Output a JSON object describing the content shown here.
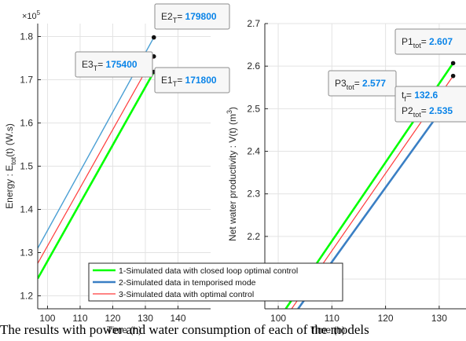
{
  "figure": {
    "caption": "The results with power and water consumption of each of the models"
  },
  "chart_data": [
    {
      "type": "line",
      "xlabel": "Time (h)",
      "ylabel": "Energy : E",
      "ylabel_sub": "tot",
      "ylabel_tail": "(t) (W.s)",
      "exponent_label": "×10",
      "exponent_power": "5",
      "xlim": [
        97,
        150
      ],
      "ylim": [
        117000,
        183000
      ],
      "xticks": [
        "100",
        "110",
        "120",
        "130",
        "140"
      ],
      "xtick_values": [
        100,
        110,
        120,
        130,
        140
      ],
      "yticks": [
        "1.2",
        "1.3",
        "1.4",
        "1.5",
        "1.6",
        "1.7",
        "1.8"
      ],
      "ytick_values": [
        120000,
        130000,
        140000,
        150000,
        160000,
        170000,
        180000
      ],
      "grid": true,
      "series": [
        {
          "key": "s1",
          "color": "#00ff00",
          "width": 2.6,
          "x": [
            97,
            132.6
          ],
          "y": [
            124000,
            171800
          ]
        },
        {
          "key": "s2",
          "color": "#4a9fd4",
          "width": 1.4,
          "x": [
            97,
            132.6
          ],
          "y": [
            131000,
            179800
          ]
        },
        {
          "key": "s3",
          "color": "#ff3b3b",
          "width": 1.2,
          "x": [
            97,
            132.6
          ],
          "y": [
            127500,
            175400
          ]
        }
      ],
      "annotations": [
        {
          "id": "e2",
          "base": "E2",
          "sub": "T",
          "eq": "= ",
          "value": "179800",
          "x": 132.6,
          "y": 179800
        },
        {
          "id": "e3",
          "base": "E3",
          "sub": "T",
          "eq": "= ",
          "value": "175400",
          "x": 132.6,
          "y": 175400
        },
        {
          "id": "e1",
          "base": "E1",
          "sub": "T",
          "eq": "= ",
          "value": "171800",
          "x": 132.6,
          "y": 171800
        }
      ]
    },
    {
      "type": "line",
      "xlabel": "Time (h)",
      "ylabel": "Net water productivity : V(t) (m",
      "ylabel_sup": "3",
      "ylabel_tail": ")",
      "xlim": [
        97.5,
        135
      ],
      "ylim": [
        2.03,
        2.7
      ],
      "xticks": [
        "100",
        "110",
        "120",
        "130"
      ],
      "xtick_values": [
        100,
        110,
        120,
        130
      ],
      "yticks": [
        "2.1",
        "2.2",
        "2.3",
        "2.4",
        "2.5",
        "2.6",
        "2.7"
      ],
      "ytick_values": [
        2.1,
        2.2,
        2.3,
        2.4,
        2.5,
        2.6,
        2.7
      ],
      "grid": true,
      "series": [
        {
          "key": "s1",
          "color": "#00ff00",
          "width": 2.6,
          "x": [
            101.4,
            132.6
          ],
          "y": [
            2.03,
            2.607
          ]
        },
        {
          "key": "s2",
          "color": "#3a7fc4",
          "width": 2.6,
          "x": [
            103.7,
            132.6
          ],
          "y": [
            2.03,
            2.535
          ]
        },
        {
          "key": "s3",
          "color": "#ff3b3b",
          "width": 1.2,
          "x": [
            102.5,
            132.6
          ],
          "y": [
            2.03,
            2.577
          ]
        }
      ],
      "annotations": [
        {
          "id": "p1",
          "base": "P1",
          "sub": "tot",
          "eq": "= ",
          "value": "2.607",
          "x": 132.6,
          "y": 2.607
        },
        {
          "id": "p3",
          "base": "P3",
          "sub": "tot",
          "eq": "= ",
          "value": "2.577",
          "x": 132.6,
          "y": 2.577
        },
        {
          "id": "tf",
          "base": "t",
          "sub": "f",
          "eq": "= ",
          "value": "132.6",
          "x": 132.6,
          "y": 2.535
        },
        {
          "id": "p2",
          "base": "P2",
          "sub": "tot",
          "eq": "= ",
          "value": "2.535",
          "x": 132.6,
          "y": 2.535
        }
      ]
    }
  ],
  "legend": {
    "entries": [
      {
        "key": "s1",
        "color": "#00ff00",
        "label": "1-Simulated data with closed loop optimal control"
      },
      {
        "key": "s2",
        "color": "#3a7fc4",
        "label": "2-Simulated data in temporised mode"
      },
      {
        "key": "s3",
        "color": "#ff3b3b",
        "label": "3-Simulated data with optimal control"
      }
    ]
  },
  "colors": {
    "axis": "#262626",
    "grid": "#e3e3e3",
    "value_text": "#0a84e8",
    "tip_border": "#8c8c8c",
    "tip_bg": "#f7f7f7"
  }
}
